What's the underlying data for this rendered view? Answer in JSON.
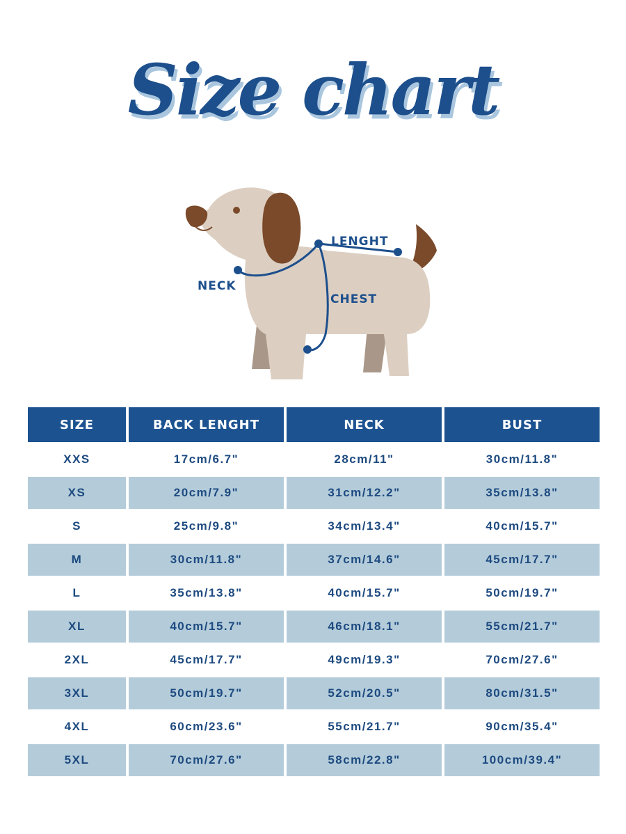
{
  "title": "Size chart",
  "diagram": {
    "labels": {
      "length": "LENGHT",
      "neck": "NECK",
      "chest": "CHEST"
    },
    "colors": {
      "body": "#dccfc2",
      "ear": "#7a4a2a",
      "legs_back": "#a99889",
      "measure_line": "#1d4f8c"
    }
  },
  "table": {
    "headers": [
      "SIZE",
      "BACK LENGHT",
      "NECK",
      "BUST"
    ],
    "rows": [
      [
        "XXS",
        "17cm/6.7\"",
        "28cm/11\"",
        "30cm/11.8\""
      ],
      [
        "XS",
        "20cm/7.9\"",
        "31cm/12.2\"",
        "35cm/13.8\""
      ],
      [
        "S",
        "25cm/9.8\"",
        "34cm/13.4\"",
        "40cm/15.7\""
      ],
      [
        "M",
        "30cm/11.8\"",
        "37cm/14.6\"",
        "45cm/17.7\""
      ],
      [
        "L",
        "35cm/13.8\"",
        "40cm/15.7\"",
        "50cm/19.7\""
      ],
      [
        "XL",
        "40cm/15.7\"",
        "46cm/18.1\"",
        "55cm/21.7\""
      ],
      [
        "2XL",
        "45cm/17.7\"",
        "49cm/19.3\"",
        "70cm/27.6\""
      ],
      [
        "3XL",
        "50cm/19.7\"",
        "52cm/20.5\"",
        "80cm/31.5\""
      ],
      [
        "4XL",
        "60cm/23.6\"",
        "55cm/21.7\"",
        "90cm/35.4\""
      ],
      [
        "5XL",
        "70cm/27.6\"",
        "58cm/22.8\"",
        "100cm/39.4\""
      ]
    ],
    "colors": {
      "header": "#1c5290",
      "alt_row": "#b4ccda",
      "text": "#1d4a80"
    }
  }
}
